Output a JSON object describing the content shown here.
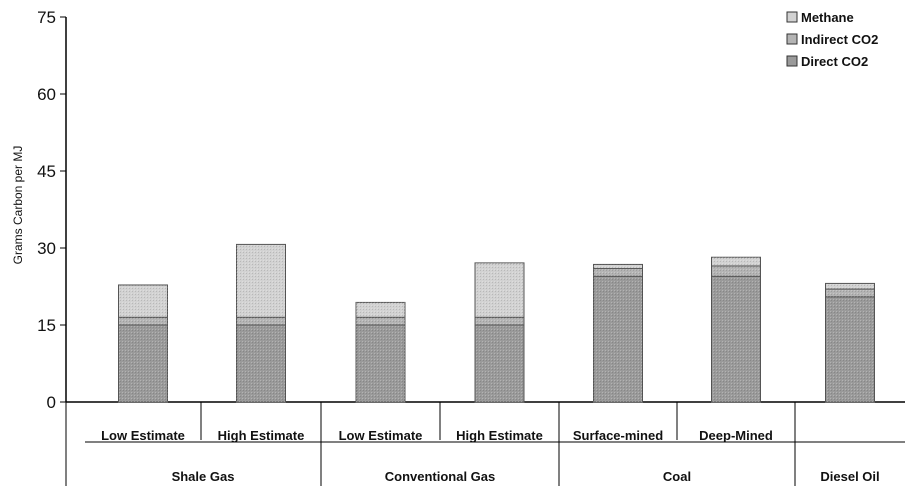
{
  "chart_data": {
    "type": "bar",
    "stacked": true,
    "categories": [
      "Low Estimate",
      "High Estimate",
      "Low Estimate",
      "High Estimate",
      "Surface-mined",
      "Deep-Mined",
      ""
    ],
    "groups": [
      {
        "label": "Shale Gas",
        "span": 2
      },
      {
        "label": "Conventional Gas",
        "span": 2
      },
      {
        "label": "Coal",
        "span": 2
      },
      {
        "label": "Diesel Oil",
        "span": 1
      }
    ],
    "series": [
      {
        "name": "Direct CO2",
        "values": [
          15.0,
          15.0,
          15.0,
          15.0,
          24.5,
          24.5,
          20.5
        ],
        "color": "#9a9a9a"
      },
      {
        "name": "Indirect CO2",
        "values": [
          1.5,
          1.5,
          1.5,
          1.5,
          1.5,
          2.0,
          1.5
        ],
        "color": "#b4b4b4"
      },
      {
        "name": "Methane",
        "values": [
          6.3,
          14.2,
          2.9,
          10.6,
          0.8,
          1.7,
          1.1
        ],
        "color": "#d2d2d2"
      }
    ],
    "ylabel": "Grams Carbon per MJ",
    "yticks": [
      0,
      15,
      30,
      45,
      60,
      75
    ],
    "ylim": [
      0,
      75
    ],
    "legend_position": "top-right",
    "grid": false
  }
}
